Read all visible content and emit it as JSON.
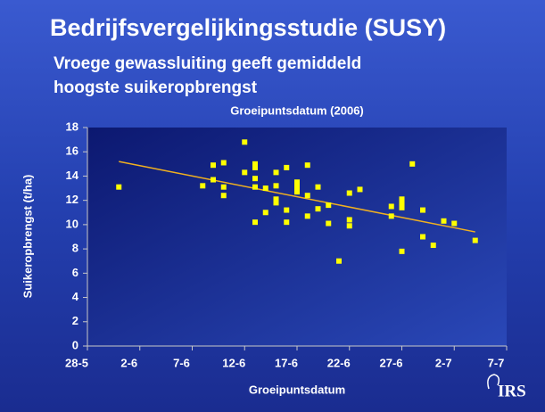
{
  "slide": {
    "title": "Bedrijfsvergelijkingsstudie (SUSY)",
    "subtitle": [
      "Vroege gewassluiting geeft gemiddeld",
      "hoogste suikeropbrengst"
    ],
    "logo": "IRS"
  },
  "chart_data": {
    "type": "scatter",
    "title": "Groeipuntsdatum (2006)",
    "x_label": "Groeipuntsdatum",
    "y_label": "Suikeropbrengst (t/ha)",
    "xlim": [
      148,
      188
    ],
    "xticks": [
      {
        "value": 148,
        "label": "28-5"
      },
      {
        "value": 153,
        "label": "2-6"
      },
      {
        "value": 158,
        "label": "7-6"
      },
      {
        "value": 163,
        "label": "12-6"
      },
      {
        "value": 168,
        "label": "17-6"
      },
      {
        "value": 173,
        "label": "22-6"
      },
      {
        "value": 178,
        "label": "27-6"
      },
      {
        "value": 183,
        "label": "2-7"
      },
      {
        "value": 188,
        "label": "7-7"
      }
    ],
    "ylim": [
      0,
      18
    ],
    "yticks": [
      0,
      2,
      4,
      6,
      8,
      10,
      12,
      14,
      16,
      18
    ],
    "grid": false,
    "series": [
      {
        "color": "#ffff00",
        "x": [
          151,
          159,
          160,
          160,
          161,
          161,
          161,
          163,
          163,
          164,
          164,
          164,
          164,
          164,
          165,
          165,
          166,
          166,
          166,
          166,
          167,
          167,
          167,
          168,
          168,
          168,
          169,
          169,
          169,
          170,
          170,
          171,
          171,
          172,
          173,
          173,
          173,
          174,
          177,
          177,
          178,
          178,
          178,
          178,
          179,
          180,
          180,
          181,
          182,
          183,
          185
        ],
        "values": [
          13.1,
          13.2,
          14.9,
          13.7,
          15.1,
          13.1,
          12.4,
          16.8,
          14.3,
          15.0,
          14.7,
          13.8,
          13.1,
          10.2,
          13.0,
          11.0,
          14.3,
          13.2,
          12.1,
          11.8,
          14.7,
          11.2,
          10.2,
          13.5,
          13.1,
          12.7,
          14.9,
          12.4,
          10.7,
          13.1,
          11.3,
          11.6,
          10.1,
          7.0,
          12.6,
          10.4,
          9.9,
          12.9,
          11.5,
          10.7,
          12.1,
          11.8,
          11.4,
          7.8,
          15.0,
          11.2,
          9.0,
          8.3,
          10.3,
          10.1,
          8.7
        ]
      }
    ],
    "trendline": {
      "color": "#f0b020",
      "x": [
        151,
        185
      ],
      "values": [
        15.2,
        9.4
      ]
    }
  }
}
